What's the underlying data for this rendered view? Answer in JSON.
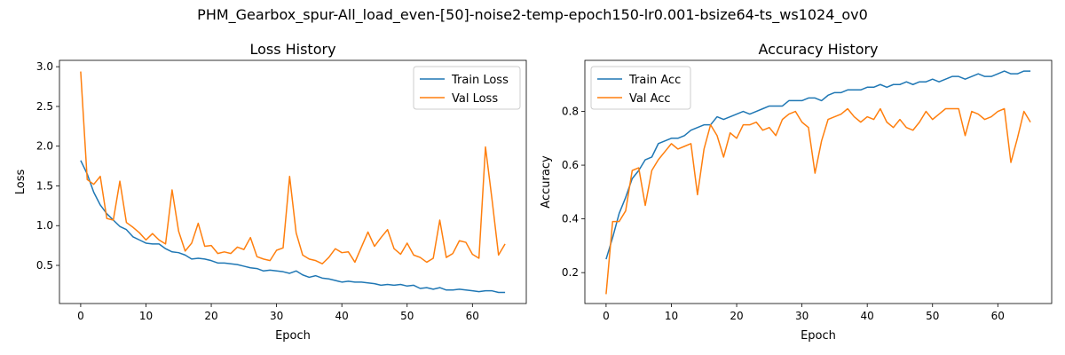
{
  "suptitle": "PHM_Gearbox_spur-All_load_even-[50]-noise2-temp-epoch150-lr0.001-bsize64-ts_ws1024_ov0",
  "colors": {
    "train": "#1f77b4",
    "val": "#ff7f0e"
  },
  "chart_data": [
    {
      "type": "line",
      "title": "Loss History",
      "xlabel": "Epoch",
      "ylabel": "Loss",
      "xlim": [
        -3.25,
        68.25
      ],
      "ylim": [
        0.02,
        3.08
      ],
      "xticks": [
        0,
        10,
        20,
        30,
        40,
        50,
        60
      ],
      "yticks": [
        0.5,
        1.0,
        1.5,
        2.0,
        2.5,
        3.0
      ],
      "ytick_labels": [
        "0.5",
        "1.0",
        "1.5",
        "2.0",
        "2.5",
        "3.0"
      ],
      "grid": false,
      "legend": "top-right",
      "series": [
        {
          "name": "Train Loss",
          "color_key": "train",
          "values": [
            1.82,
            1.65,
            1.42,
            1.26,
            1.15,
            1.07,
            0.99,
            0.95,
            0.86,
            0.82,
            0.78,
            0.77,
            0.77,
            0.71,
            0.67,
            0.66,
            0.63,
            0.58,
            0.59,
            0.58,
            0.56,
            0.53,
            0.53,
            0.52,
            0.51,
            0.49,
            0.47,
            0.46,
            0.43,
            0.44,
            0.43,
            0.42,
            0.4,
            0.43,
            0.38,
            0.35,
            0.37,
            0.34,
            0.33,
            0.31,
            0.29,
            0.3,
            0.29,
            0.29,
            0.28,
            0.27,
            0.25,
            0.26,
            0.25,
            0.26,
            0.24,
            0.25,
            0.21,
            0.22,
            0.2,
            0.22,
            0.19,
            0.19,
            0.2,
            0.19,
            0.18,
            0.17,
            0.18,
            0.18,
            0.16,
            0.16
          ]
        },
        {
          "name": "Val Loss",
          "color_key": "val",
          "values": [
            2.94,
            1.58,
            1.52,
            1.62,
            1.09,
            1.07,
            1.56,
            1.04,
            0.98,
            0.91,
            0.82,
            0.9,
            0.82,
            0.77,
            1.45,
            0.93,
            0.68,
            0.78,
            1.03,
            0.74,
            0.75,
            0.65,
            0.67,
            0.65,
            0.73,
            0.7,
            0.85,
            0.61,
            0.58,
            0.56,
            0.69,
            0.72,
            1.62,
            0.91,
            0.63,
            0.58,
            0.56,
            0.52,
            0.6,
            0.71,
            0.66,
            0.67,
            0.54,
            0.73,
            0.92,
            0.74,
            0.85,
            0.95,
            0.71,
            0.64,
            0.78,
            0.63,
            0.6,
            0.54,
            0.59,
            1.07,
            0.6,
            0.65,
            0.81,
            0.79,
            0.64,
            0.59,
            1.99,
            1.33,
            0.63,
            0.77
          ]
        }
      ]
    },
    {
      "type": "line",
      "title": "Accuracy History",
      "xlabel": "Epoch",
      "ylabel": "Accuracy",
      "xlim": [
        -3.25,
        68.25
      ],
      "ylim": [
        0.085,
        0.99
      ],
      "xticks": [
        0,
        10,
        20,
        30,
        40,
        50,
        60
      ],
      "yticks": [
        0.2,
        0.4,
        0.6,
        0.8
      ],
      "ytick_labels": [
        "0.2",
        "0.4",
        "0.6",
        "0.8"
      ],
      "grid": false,
      "legend": "top-left",
      "series": [
        {
          "name": "Train Acc",
          "color_key": "train",
          "values": [
            0.25,
            0.33,
            0.42,
            0.48,
            0.55,
            0.58,
            0.62,
            0.63,
            0.68,
            0.69,
            0.7,
            0.7,
            0.71,
            0.73,
            0.74,
            0.75,
            0.75,
            0.78,
            0.77,
            0.78,
            0.79,
            0.8,
            0.79,
            0.8,
            0.81,
            0.82,
            0.82,
            0.82,
            0.84,
            0.84,
            0.84,
            0.85,
            0.85,
            0.84,
            0.86,
            0.87,
            0.87,
            0.88,
            0.88,
            0.88,
            0.89,
            0.89,
            0.9,
            0.89,
            0.9,
            0.9,
            0.91,
            0.9,
            0.91,
            0.91,
            0.92,
            0.91,
            0.92,
            0.93,
            0.93,
            0.92,
            0.93,
            0.94,
            0.93,
            0.93,
            0.94,
            0.95,
            0.94,
            0.94,
            0.95,
            0.95
          ]
        },
        {
          "name": "Val Acc",
          "color_key": "val",
          "values": [
            0.12,
            0.39,
            0.39,
            0.43,
            0.58,
            0.59,
            0.45,
            0.58,
            0.62,
            0.65,
            0.68,
            0.66,
            0.67,
            0.68,
            0.49,
            0.66,
            0.75,
            0.71,
            0.63,
            0.72,
            0.7,
            0.75,
            0.75,
            0.76,
            0.73,
            0.74,
            0.71,
            0.77,
            0.79,
            0.8,
            0.76,
            0.74,
            0.57,
            0.69,
            0.77,
            0.78,
            0.79,
            0.81,
            0.78,
            0.76,
            0.78,
            0.77,
            0.81,
            0.76,
            0.74,
            0.77,
            0.74,
            0.73,
            0.76,
            0.8,
            0.77,
            0.79,
            0.81,
            0.81,
            0.81,
            0.71,
            0.8,
            0.79,
            0.77,
            0.78,
            0.8,
            0.81,
            0.61,
            0.7,
            0.8,
            0.76
          ]
        }
      ]
    }
  ]
}
